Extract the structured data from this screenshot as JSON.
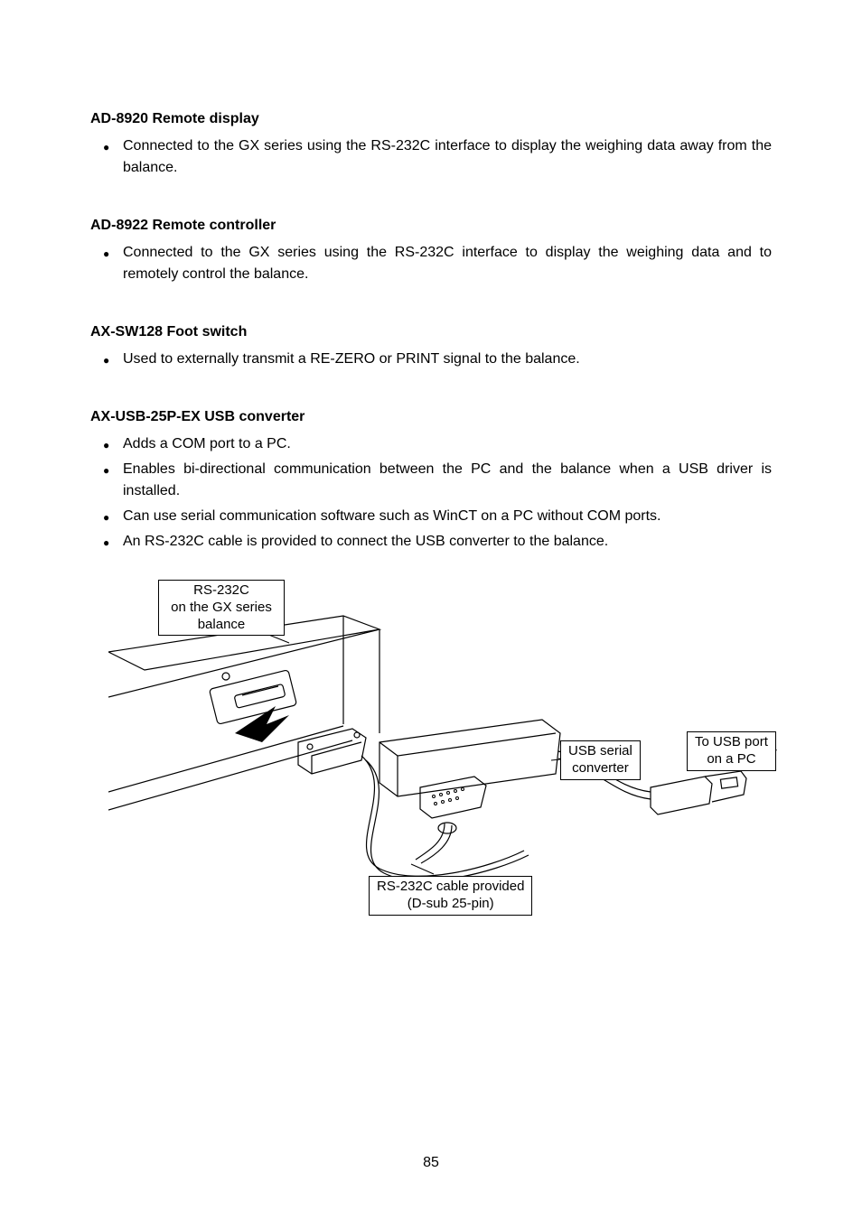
{
  "sections": [
    {
      "title": "AD-8920 Remote display",
      "bullets": [
        "Connected to the GX series using the RS-232C interface to display the weighing data away from the balance."
      ]
    },
    {
      "title": "AD-8922 Remote controller",
      "bullets": [
        "Connected to the GX series using the RS-232C interface to display the weighing data and to remotely control the balance."
      ]
    },
    {
      "title": "AX-SW128 Foot switch",
      "bullets": [
        "Used to externally transmit a RE-ZERO or PRINT signal to the balance."
      ]
    },
    {
      "title": "AX-USB-25P-EX USB converter",
      "bullets": [
        "Adds a COM port to a PC.",
        "Enables bi-directional communication between the PC and the balance when a USB driver is installed.",
        "Can use serial communication software such as WinCT on a PC without COM ports.",
        "An RS-232C cable is provided to connect the USB converter to the balance."
      ]
    }
  ],
  "figure": {
    "labels": {
      "rs232_balance": "RS-232C\non the GX series\nbalance",
      "usb_converter": "USB serial\nconverter",
      "usb_port": "To USB port\non a PC",
      "cable_provided": "RS-232C cable provided\n(D-sub 25-pin)"
    },
    "colors": {
      "stroke": "#000000",
      "fill_none": "none",
      "fill_white": "#ffffff",
      "fill_black": "#000000"
    }
  },
  "page_number": "85"
}
